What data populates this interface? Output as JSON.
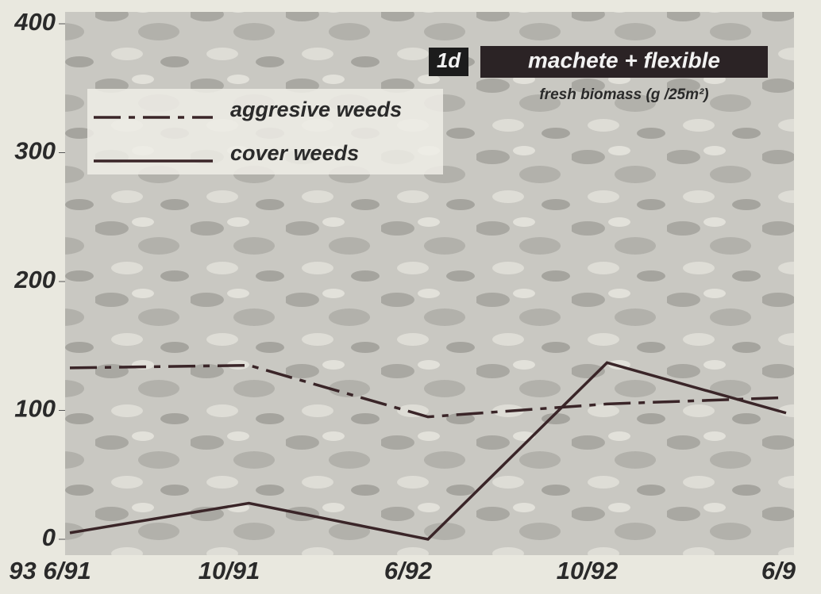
{
  "chart_data": {
    "type": "line",
    "panel": "1d",
    "title": "machete + flexible",
    "subtitle": "fresh biomass (g /25m²)",
    "categories": [
      "93 6/91",
      "10/91",
      "6/92",
      "10/92",
      "6/9"
    ],
    "series": [
      {
        "name": "aggresive weeds",
        "color": "#3a2528",
        "dash": "dashdot",
        "values": [
          133,
          135,
          95,
          105,
          110
        ]
      },
      {
        "name": "cover weeds",
        "color": "#3a2528",
        "dash": "solid",
        "values": [
          5,
          28,
          0,
          137,
          98
        ]
      }
    ],
    "ylim": [
      0,
      400
    ],
    "yticks": [
      0,
      100,
      200,
      300,
      400
    ],
    "grid": false
  }
}
